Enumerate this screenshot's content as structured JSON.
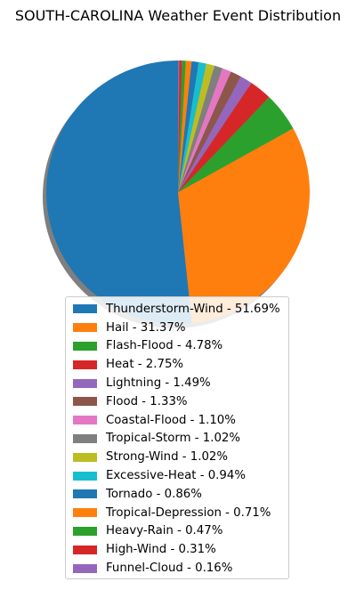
{
  "chart_data": {
    "type": "pie",
    "title": "SOUTH-CAROLINA Weather Event Distribution",
    "slices": [
      {
        "label": "Thunderstorm-Wind - 51.69%",
        "value": 51.69,
        "color": "#1f77b4"
      },
      {
        "label": "Hail - 31.37%",
        "value": 31.37,
        "color": "#ff7f0e"
      },
      {
        "label": "Flash-Flood - 4.78%",
        "value": 4.78,
        "color": "#2ca02c"
      },
      {
        "label": "Heat - 2.75%",
        "value": 2.75,
        "color": "#d62728"
      },
      {
        "label": "Lightning - 1.49%",
        "value": 1.49,
        "color": "#9467bd"
      },
      {
        "label": "Flood - 1.33%",
        "value": 1.33,
        "color": "#8c564b"
      },
      {
        "label": "Coastal-Flood - 1.10%",
        "value": 1.1,
        "color": "#e377c2"
      },
      {
        "label": "Tropical-Storm - 1.02%",
        "value": 1.02,
        "color": "#7f7f7f"
      },
      {
        "label": "Strong-Wind - 1.02%",
        "value": 1.02,
        "color": "#bcbd22"
      },
      {
        "label": "Excessive-Heat - 0.94%",
        "value": 0.94,
        "color": "#17becf"
      },
      {
        "label": "Tornado - 0.86%",
        "value": 0.86,
        "color": "#1f77b4"
      },
      {
        "label": "Tropical-Depression - 0.71%",
        "value": 0.71,
        "color": "#ff7f0e"
      },
      {
        "label": "Heavy-Rain - 0.47%",
        "value": 0.47,
        "color": "#2ca02c"
      },
      {
        "label": "High-Wind - 0.31%",
        "value": 0.31,
        "color": "#d62728"
      },
      {
        "label": "Funnel-Cloud - 0.16%",
        "value": 0.16,
        "color": "#9467bd"
      }
    ],
    "start_angle_deg": 90,
    "direction": "counterclockwise",
    "shadow": true,
    "legend_position": "lower-center"
  }
}
